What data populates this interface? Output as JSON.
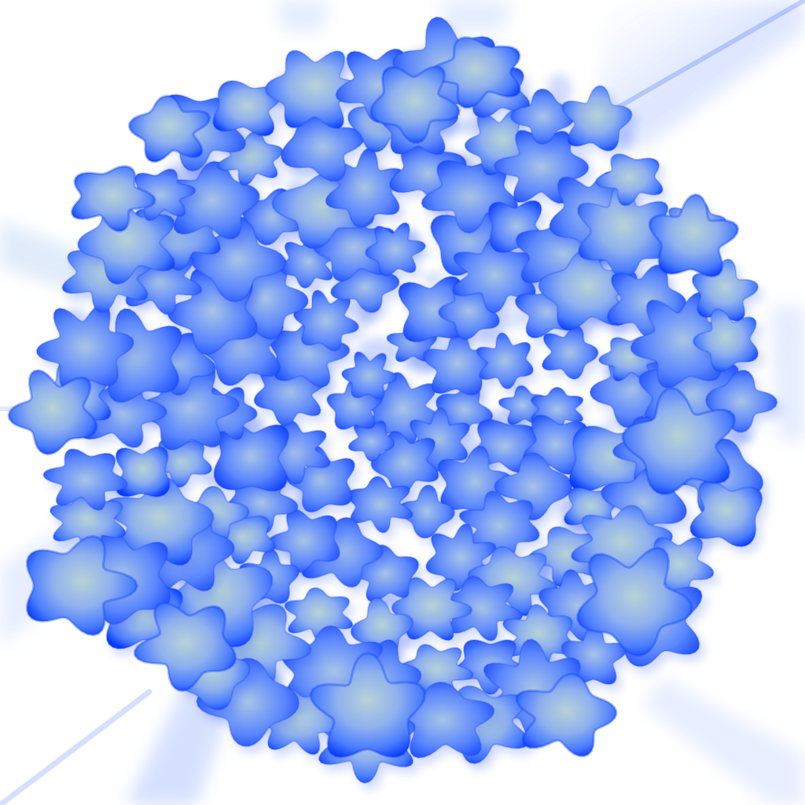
{
  "image": {
    "description_shown": "",
    "colors": {
      "background": "#ffffff",
      "petal_edge": "#0a3cff",
      "petal_mid": "#4a7dff",
      "petal_core": "#b7d3d6",
      "ray": "#dfe8ff",
      "ray_accent": "#2f5cff"
    },
    "elements": {
      "clusters": "blue-petal-clusters",
      "rays": "diagonal-light-rays"
    }
  }
}
